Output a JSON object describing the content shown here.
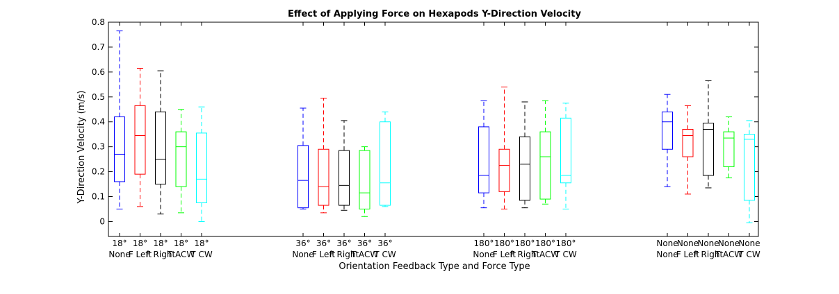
{
  "chart_data": {
    "type": "box",
    "title": "Effect of Applying Force on Hexapods Y-Direction Velocity",
    "xlabel": "Orientation Feedback Type and Force Type",
    "ylabel": "Y-Direction Velocity (m/s)",
    "ylim": [
      -0.06,
      0.8
    ],
    "yticks": [
      0,
      0.1,
      0.2,
      0.3,
      0.4,
      0.5,
      0.6,
      0.7,
      0.8
    ],
    "ytick_labels": [
      "0",
      "0.1",
      "0.2",
      "0.3",
      "0.4",
      "0.5",
      "0.6",
      "0.7",
      "0.8"
    ],
    "grid": false,
    "groups": [
      {
        "label": "18°",
        "boxes": [
          {
            "force": "None",
            "color": "#0000ff",
            "whisker_low": 0.05,
            "q1": 0.16,
            "median": 0.27,
            "q3": 0.42,
            "whisker_high": 0.765
          },
          {
            "force": "F Left",
            "color": "#ff0000",
            "whisker_low": 0.06,
            "q1": 0.19,
            "median": 0.345,
            "q3": 0.465,
            "whisker_high": 0.615
          },
          {
            "force": "F Right",
            "color": "#000000",
            "whisker_low": 0.03,
            "q1": 0.15,
            "median": 0.25,
            "q3": 0.44,
            "whisker_high": 0.605
          },
          {
            "force": "T ACW",
            "color": "#00ff00",
            "whisker_low": 0.035,
            "q1": 0.14,
            "median": 0.3,
            "q3": 0.36,
            "whisker_high": 0.45
          },
          {
            "force": "T CW",
            "color": "#00ffff",
            "whisker_low": 0.0,
            "q1": 0.075,
            "median": 0.17,
            "q3": 0.355,
            "whisker_high": 0.46
          }
        ]
      },
      {
        "label": "36°",
        "boxes": [
          {
            "force": "None",
            "color": "#0000ff",
            "whisker_low": 0.05,
            "q1": 0.055,
            "median": 0.165,
            "q3": 0.305,
            "whisker_high": 0.455
          },
          {
            "force": "F Left",
            "color": "#ff0000",
            "whisker_low": 0.035,
            "q1": 0.065,
            "median": 0.14,
            "q3": 0.29,
            "whisker_high": 0.495
          },
          {
            "force": "F Right",
            "color": "#000000",
            "whisker_low": 0.045,
            "q1": 0.065,
            "median": 0.145,
            "q3": 0.285,
            "whisker_high": 0.405
          },
          {
            "force": "T ACW",
            "color": "#00ff00",
            "whisker_low": 0.02,
            "q1": 0.05,
            "median": 0.115,
            "q3": 0.285,
            "whisker_high": 0.3
          },
          {
            "force": "T CW",
            "color": "#00ffff",
            "whisker_low": 0.06,
            "q1": 0.065,
            "median": 0.155,
            "q3": 0.4,
            "whisker_high": 0.44
          }
        ]
      },
      {
        "label": "180°",
        "boxes": [
          {
            "force": "None",
            "color": "#0000ff",
            "whisker_low": 0.055,
            "q1": 0.115,
            "median": 0.185,
            "q3": 0.38,
            "whisker_high": 0.485
          },
          {
            "force": "F Left",
            "color": "#ff0000",
            "whisker_low": 0.05,
            "q1": 0.12,
            "median": 0.225,
            "q3": 0.29,
            "whisker_high": 0.54
          },
          {
            "force": "F Right",
            "color": "#000000",
            "whisker_low": 0.055,
            "q1": 0.085,
            "median": 0.23,
            "q3": 0.34,
            "whisker_high": 0.48
          },
          {
            "force": "T ACW",
            "color": "#00ff00",
            "whisker_low": 0.07,
            "q1": 0.09,
            "median": 0.26,
            "q3": 0.36,
            "whisker_high": 0.485
          },
          {
            "force": "T CW",
            "color": "#00ffff",
            "whisker_low": 0.05,
            "q1": 0.155,
            "median": 0.185,
            "q3": 0.415,
            "whisker_high": 0.475
          }
        ]
      },
      {
        "label": "None",
        "boxes": [
          {
            "force": "None",
            "color": "#0000ff",
            "whisker_low": 0.14,
            "q1": 0.29,
            "median": 0.4,
            "q3": 0.44,
            "whisker_high": 0.51
          },
          {
            "force": "F Left",
            "color": "#ff0000",
            "whisker_low": 0.11,
            "q1": 0.26,
            "median": 0.345,
            "q3": 0.37,
            "whisker_high": 0.465
          },
          {
            "force": "F Right",
            "color": "#000000",
            "whisker_low": 0.135,
            "q1": 0.185,
            "median": 0.37,
            "q3": 0.395,
            "whisker_high": 0.565
          },
          {
            "force": "T ACW",
            "color": "#00ff00",
            "whisker_low": 0.175,
            "q1": 0.22,
            "median": 0.335,
            "q3": 0.36,
            "whisker_high": 0.42
          },
          {
            "force": "T CW",
            "color": "#00ffff",
            "whisker_low": -0.005,
            "q1": 0.085,
            "median": 0.33,
            "q3": 0.35,
            "whisker_high": 0.405
          }
        ]
      }
    ]
  }
}
